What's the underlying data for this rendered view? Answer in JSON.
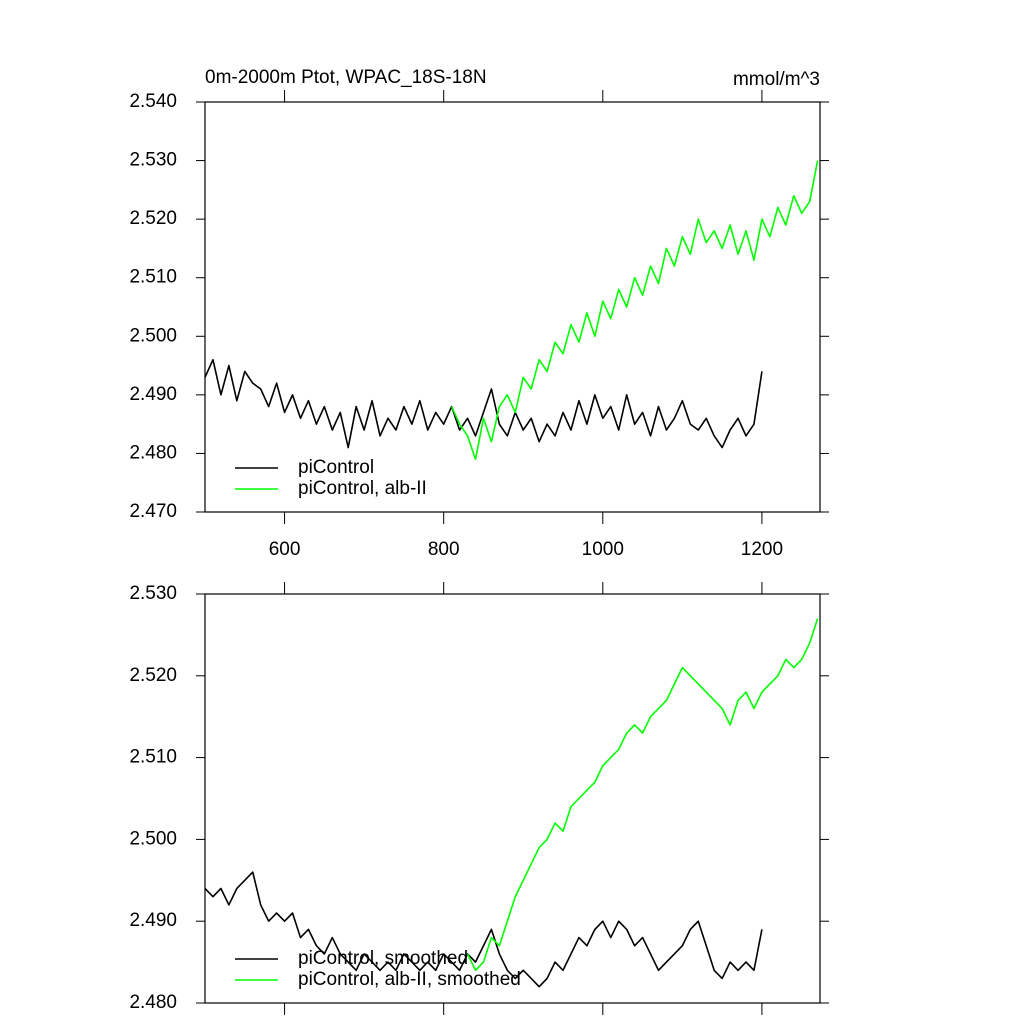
{
  "chart_data": [
    {
      "type": "line",
      "title": "0m-2000m Ptot, WPAC_18S-18N",
      "subtitle": "mmol/m^3",
      "xlim": [
        500,
        1273
      ],
      "xticks": [
        600,
        800,
        1000,
        1200
      ],
      "ylim": [
        2.47,
        2.54
      ],
      "yticks": [
        {
          "value": 2.47,
          "label": "2.470"
        },
        {
          "value": 2.48,
          "label": "2.480"
        },
        {
          "value": 2.49,
          "label": "2.490"
        },
        {
          "value": 2.5,
          "label": "2.500"
        },
        {
          "value": 2.51,
          "label": "2.510"
        },
        {
          "value": 2.52,
          "label": "2.520"
        },
        {
          "value": 2.53,
          "label": "2.530"
        },
        {
          "value": 2.54,
          "label": "2.540"
        }
      ],
      "legend": "lower left",
      "series": [
        {
          "name": "piControl",
          "color": "#000000",
          "x": [
            500,
            510,
            520,
            530,
            540,
            550,
            560,
            570,
            580,
            590,
            600,
            610,
            620,
            630,
            640,
            650,
            660,
            670,
            680,
            690,
            700,
            710,
            720,
            730,
            740,
            750,
            760,
            770,
            780,
            790,
            800,
            810,
            820,
            830,
            840,
            850,
            860,
            870,
            880,
            890,
            900,
            910,
            920,
            930,
            940,
            950,
            960,
            970,
            980,
            990,
            1000,
            1010,
            1020,
            1030,
            1040,
            1050,
            1060,
            1070,
            1080,
            1090,
            1100,
            1110,
            1120,
            1130,
            1140,
            1150,
            1160,
            1170,
            1180,
            1190,
            1200
          ],
          "values": [
            2.493,
            2.496,
            2.49,
            2.495,
            2.489,
            2.494,
            2.492,
            2.491,
            2.488,
            2.492,
            2.487,
            2.49,
            2.486,
            2.489,
            2.485,
            2.488,
            2.484,
            2.487,
            2.481,
            2.488,
            2.484,
            2.489,
            2.483,
            2.486,
            2.484,
            2.488,
            2.485,
            2.489,
            2.484,
            2.487,
            2.485,
            2.488,
            2.484,
            2.486,
            2.483,
            2.487,
            2.491,
            2.485,
            2.483,
            2.487,
            2.484,
            2.486,
            2.482,
            2.485,
            2.483,
            2.487,
            2.484,
            2.489,
            2.485,
            2.49,
            2.486,
            2.488,
            2.484,
            2.49,
            2.485,
            2.487,
            2.483,
            2.488,
            2.484,
            2.486,
            2.489,
            2.485,
            2.484,
            2.486,
            2.483,
            2.481,
            2.484,
            2.486,
            2.483,
            2.485,
            2.494
          ]
        },
        {
          "name": "piControl, alb-II",
          "color": "#00ff00",
          "x": [
            810,
            820,
            830,
            840,
            850,
            860,
            870,
            880,
            890,
            900,
            910,
            920,
            930,
            940,
            950,
            960,
            970,
            980,
            990,
            1000,
            1010,
            1020,
            1030,
            1040,
            1050,
            1060,
            1070,
            1080,
            1090,
            1100,
            1110,
            1120,
            1130,
            1140,
            1150,
            1160,
            1170,
            1180,
            1190,
            1200,
            1210,
            1220,
            1230,
            1240,
            1250,
            1260,
            1270
          ],
          "values": [
            2.488,
            2.485,
            2.483,
            2.479,
            2.486,
            2.482,
            2.488,
            2.49,
            2.487,
            2.493,
            2.491,
            2.496,
            2.494,
            2.499,
            2.497,
            2.502,
            2.499,
            2.504,
            2.5,
            2.506,
            2.503,
            2.508,
            2.505,
            2.51,
            2.507,
            2.512,
            2.509,
            2.515,
            2.512,
            2.517,
            2.514,
            2.52,
            2.516,
            2.518,
            2.515,
            2.519,
            2.514,
            2.518,
            2.513,
            2.52,
            2.517,
            2.522,
            2.519,
            2.524,
            2.521,
            2.523,
            2.53
          ]
        }
      ]
    },
    {
      "type": "line",
      "xlim": [
        500,
        1273
      ],
      "xticks": [
        600,
        800,
        1000,
        1200
      ],
      "ylim": [
        2.48,
        2.53
      ],
      "yticks": [
        {
          "value": 2.48,
          "label": "2.480"
        },
        {
          "value": 2.49,
          "label": "2.490"
        },
        {
          "value": 2.5,
          "label": "2.500"
        },
        {
          "value": 2.51,
          "label": "2.510"
        },
        {
          "value": 2.52,
          "label": "2.520"
        },
        {
          "value": 2.53,
          "label": "2.530"
        }
      ],
      "legend": "lower left",
      "series": [
        {
          "name": "piControl, smoothed",
          "color": "#000000",
          "x": [
            500,
            510,
            520,
            530,
            540,
            550,
            560,
            570,
            580,
            590,
            600,
            610,
            620,
            630,
            640,
            650,
            660,
            670,
            680,
            690,
            700,
            710,
            720,
            730,
            740,
            750,
            760,
            770,
            780,
            790,
            800,
            810,
            820,
            830,
            840,
            850,
            860,
            870,
            880,
            890,
            900,
            910,
            920,
            930,
            940,
            950,
            960,
            970,
            980,
            990,
            1000,
            1010,
            1020,
            1030,
            1040,
            1050,
            1060,
            1070,
            1080,
            1090,
            1100,
            1110,
            1120,
            1130,
            1140,
            1150,
            1160,
            1170,
            1180,
            1190,
            1200
          ],
          "values": [
            2.494,
            2.493,
            2.494,
            2.492,
            2.494,
            2.495,
            2.496,
            2.492,
            2.49,
            2.491,
            2.49,
            2.491,
            2.488,
            2.489,
            2.487,
            2.486,
            2.488,
            2.486,
            2.485,
            2.484,
            2.486,
            2.485,
            2.484,
            2.485,
            2.484,
            2.486,
            2.485,
            2.484,
            2.485,
            2.484,
            2.486,
            2.485,
            2.484,
            2.486,
            2.485,
            2.487,
            2.489,
            2.486,
            2.484,
            2.483,
            2.484,
            2.483,
            2.482,
            2.483,
            2.485,
            2.484,
            2.486,
            2.488,
            2.487,
            2.489,
            2.49,
            2.488,
            2.49,
            2.489,
            2.487,
            2.488,
            2.486,
            2.484,
            2.485,
            2.486,
            2.487,
            2.489,
            2.49,
            2.487,
            2.484,
            2.483,
            2.485,
            2.484,
            2.485,
            2.484,
            2.489
          ]
        },
        {
          "name": "piControl, alb-II, smoothed",
          "color": "#00ff00",
          "x": [
            830,
            840,
            850,
            860,
            870,
            880,
            890,
            900,
            910,
            920,
            930,
            940,
            950,
            960,
            970,
            980,
            990,
            1000,
            1010,
            1020,
            1030,
            1040,
            1050,
            1060,
            1070,
            1080,
            1090,
            1100,
            1110,
            1120,
            1130,
            1140,
            1150,
            1160,
            1170,
            1180,
            1190,
            1200,
            1210,
            1220,
            1230,
            1240,
            1250,
            1260,
            1270
          ],
          "values": [
            2.486,
            2.484,
            2.485,
            2.488,
            2.487,
            2.49,
            2.493,
            2.495,
            2.497,
            2.499,
            2.5,
            2.502,
            2.501,
            2.504,
            2.505,
            2.506,
            2.507,
            2.509,
            2.51,
            2.511,
            2.513,
            2.514,
            2.513,
            2.515,
            2.516,
            2.517,
            2.519,
            2.521,
            2.52,
            2.519,
            2.518,
            2.517,
            2.516,
            2.514,
            2.517,
            2.518,
            2.516,
            2.518,
            2.519,
            2.52,
            2.522,
            2.521,
            2.522,
            2.524,
            2.527
          ]
        }
      ]
    }
  ]
}
